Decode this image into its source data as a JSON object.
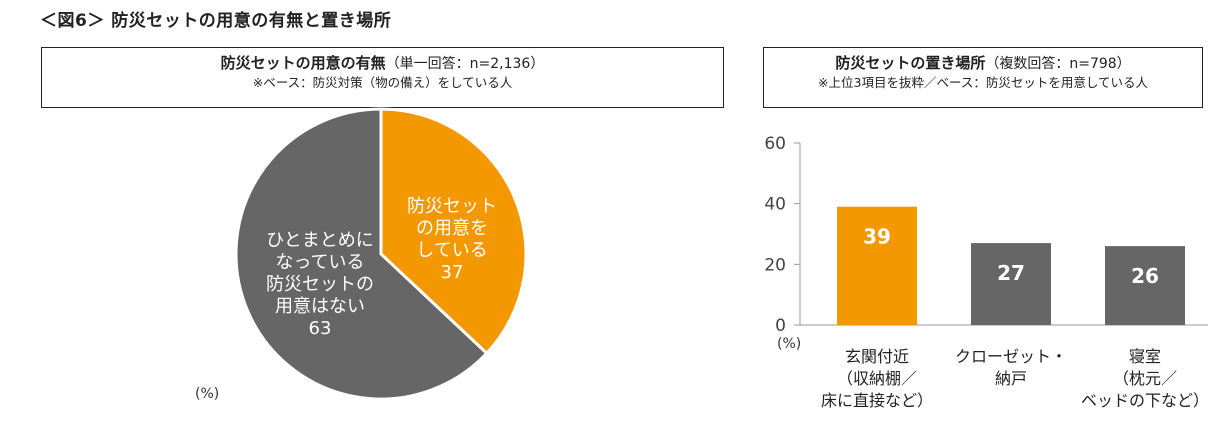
{
  "figure_title": "＜図6＞ 防災セットの用意の有無と置き場所",
  "left_panel": {
    "title_bold": "防災セットの用意の有無",
    "title_note": "（単一回答：n=2,136）",
    "subtitle": "※ベース：防災対策（物の備え）をしている人",
    "unit_label": "(%)"
  },
  "right_panel": {
    "title_bold": "防災セットの置き場所",
    "title_note": "（複数回答：n=798）",
    "subtitle": "※上位3項目を抜粋／ベース：防災セットを用意している人",
    "unit_label": "(%)"
  },
  "colors": {
    "orange": "#F39800",
    "gray": "#666666",
    "white": "#FFFFFF"
  },
  "chart_data": [
    {
      "type": "pie",
      "slices": [
        {
          "label_lines": [
            "防災セット",
            "の用意を",
            "している"
          ],
          "value": 37,
          "color": "#F39800"
        },
        {
          "label_lines": [
            "ひとまとめに",
            "なっている",
            "防災セットの",
            "用意はない"
          ],
          "value": 63,
          "color": "#666666"
        }
      ]
    },
    {
      "type": "bar",
      "categories": [
        [
          "玄関付近",
          "（収納棚／",
          "床に直接など）"
        ],
        [
          "クローゼット・",
          "納戸"
        ],
        [
          "寝室",
          "（枕元／",
          "ベッドの下など）"
        ]
      ],
      "values": [
        39,
        27,
        26
      ],
      "colors": [
        "#F39800",
        "#666666",
        "#666666"
      ],
      "yticks": [
        0,
        20,
        40,
        60
      ],
      "ylim": [
        0,
        60
      ]
    }
  ]
}
